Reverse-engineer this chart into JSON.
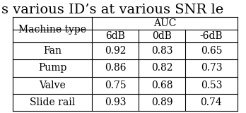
{
  "title_text": "s various ID’s at various SNR le",
  "col_header_1": "Machine type",
  "col_header_group": "AUC",
  "sub_headers": [
    "6dB",
    "0dB",
    "-6dB"
  ],
  "rows": [
    [
      "Fan",
      "0.92",
      "0.83",
      "0.65"
    ],
    [
      "Pump",
      "0.86",
      "0.82",
      "0.73"
    ],
    [
      "Valve",
      "0.75",
      "0.68",
      "0.53"
    ],
    [
      "Slide rail",
      "0.93",
      "0.89",
      "0.74"
    ]
  ],
  "bg_color": "#ffffff",
  "text_color": "#000000",
  "title_fontsize": 14,
  "table_fontsize": 10,
  "line_width": 0.8
}
